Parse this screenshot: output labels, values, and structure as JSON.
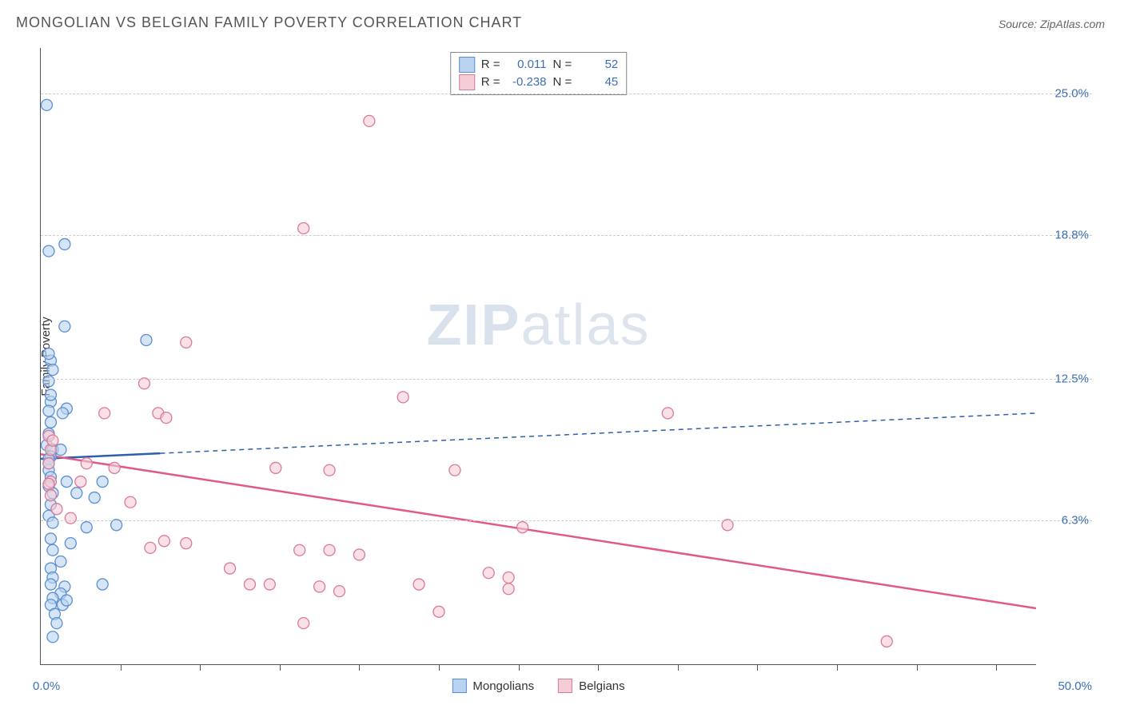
{
  "title": "MONGOLIAN VS BELGIAN FAMILY POVERTY CORRELATION CHART",
  "source_prefix": "Source: ",
  "source_name": "ZipAtlas.com",
  "y_axis_label": "Family Poverty",
  "watermark_bold": "ZIP",
  "watermark_rest": "atlas",
  "legend_top": {
    "series": [
      {
        "r_label": "R =",
        "r_value": "0.011",
        "n_label": "N =",
        "n_value": "52",
        "swatch_fill": "#b9d4f0",
        "swatch_border": "#5a8fd4"
      },
      {
        "r_label": "R =",
        "r_value": "-0.238",
        "n_label": "N =",
        "n_value": "45",
        "swatch_fill": "#f5cdd6",
        "swatch_border": "#d97a9a"
      }
    ]
  },
  "legend_bottom": {
    "items": [
      {
        "label": "Mongolians",
        "swatch_fill": "#b9d4f0",
        "swatch_border": "#5a8fd4"
      },
      {
        "label": "Belgians",
        "swatch_fill": "#f5cdd6",
        "swatch_border": "#d97a9a"
      }
    ]
  },
  "chart": {
    "type": "scatter",
    "xlim": [
      0,
      50
    ],
    "ylim": [
      0,
      27
    ],
    "x_axis_end_labels": [
      "0.0%",
      "50.0%"
    ],
    "y_ticks": [
      {
        "value": 6.3,
        "label": "6.3%"
      },
      {
        "value": 12.5,
        "label": "12.5%"
      },
      {
        "value": 18.8,
        "label": "18.8%"
      },
      {
        "value": 25.0,
        "label": "25.0%"
      }
    ],
    "x_tick_positions": [
      4,
      8,
      12,
      16,
      20,
      24,
      28,
      32,
      36,
      40,
      44,
      48
    ],
    "grid_color": "#cccccc",
    "background_color": "#ffffff",
    "marker_radius": 7,
    "marker_stroke_width": 1.3,
    "series": [
      {
        "name": "Mongolians",
        "color_fill": "#b9d4f0",
        "color_stroke": "#5a8fd4",
        "fill_opacity": 0.6,
        "trend": {
          "y_intercept": 9.0,
          "slope": 0.04,
          "solid_until_x": 6.0,
          "color": "#2f5fa8",
          "width": 2.5,
          "dash": "6 5"
        },
        "points": [
          [
            0.3,
            24.5
          ],
          [
            0.4,
            18.1
          ],
          [
            1.2,
            18.4
          ],
          [
            1.2,
            14.8
          ],
          [
            0.5,
            13.3
          ],
          [
            0.4,
            13.6
          ],
          [
            0.6,
            12.9
          ],
          [
            0.4,
            12.4
          ],
          [
            0.5,
            11.5
          ],
          [
            0.4,
            11.1
          ],
          [
            1.3,
            11.2
          ],
          [
            1.1,
            11.0
          ],
          [
            0.5,
            10.6
          ],
          [
            0.4,
            10.1
          ],
          [
            0.3,
            9.6
          ],
          [
            0.6,
            9.4
          ],
          [
            0.5,
            9.1
          ],
          [
            0.4,
            9.0
          ],
          [
            1.0,
            9.4
          ],
          [
            0.4,
            8.5
          ],
          [
            0.5,
            8.2
          ],
          [
            1.3,
            8.0
          ],
          [
            0.4,
            7.8
          ],
          [
            0.6,
            7.5
          ],
          [
            1.8,
            7.5
          ],
          [
            2.7,
            7.3
          ],
          [
            3.1,
            8.0
          ],
          [
            0.5,
            7.0
          ],
          [
            0.4,
            6.5
          ],
          [
            0.6,
            6.2
          ],
          [
            2.3,
            6.0
          ],
          [
            3.8,
            6.1
          ],
          [
            0.5,
            5.5
          ],
          [
            1.5,
            5.3
          ],
          [
            0.6,
            5.0
          ],
          [
            1.0,
            4.5
          ],
          [
            0.5,
            4.2
          ],
          [
            0.6,
            3.8
          ],
          [
            0.5,
            3.5
          ],
          [
            1.2,
            3.4
          ],
          [
            3.1,
            3.5
          ],
          [
            1.0,
            3.1
          ],
          [
            0.6,
            2.9
          ],
          [
            0.5,
            2.6
          ],
          [
            1.1,
            2.6
          ],
          [
            1.3,
            2.8
          ],
          [
            0.7,
            2.2
          ],
          [
            0.8,
            1.8
          ],
          [
            0.6,
            1.2
          ],
          [
            5.3,
            14.2
          ],
          [
            0.4,
            8.8
          ],
          [
            0.5,
            11.8
          ]
        ]
      },
      {
        "name": "Belgians",
        "color_fill": "#f5cdd6",
        "color_stroke": "#d97a9a",
        "fill_opacity": 0.6,
        "trend": {
          "y_intercept": 9.2,
          "slope": -0.135,
          "solid_until_x": 50,
          "color": "#e05a88",
          "width": 2.5,
          "dash": ""
        },
        "points": [
          [
            16.5,
            23.8
          ],
          [
            13.2,
            19.1
          ],
          [
            7.3,
            14.1
          ],
          [
            5.2,
            12.3
          ],
          [
            18.2,
            11.7
          ],
          [
            31.5,
            11.0
          ],
          [
            3.2,
            11.0
          ],
          [
            5.9,
            11.0
          ],
          [
            6.3,
            10.8
          ],
          [
            0.4,
            10.0
          ],
          [
            0.5,
            9.4
          ],
          [
            0.4,
            8.8
          ],
          [
            2.3,
            8.8
          ],
          [
            3.7,
            8.6
          ],
          [
            11.8,
            8.6
          ],
          [
            14.5,
            8.5
          ],
          [
            20.8,
            8.5
          ],
          [
            0.5,
            8.0
          ],
          [
            2.0,
            8.0
          ],
          [
            0.5,
            7.4
          ],
          [
            4.5,
            7.1
          ],
          [
            0.8,
            6.8
          ],
          [
            1.5,
            6.4
          ],
          [
            24.2,
            6.0
          ],
          [
            34.5,
            6.1
          ],
          [
            6.2,
            5.4
          ],
          [
            7.3,
            5.3
          ],
          [
            5.5,
            5.1
          ],
          [
            13.0,
            5.0
          ],
          [
            14.5,
            5.0
          ],
          [
            16.0,
            4.8
          ],
          [
            9.5,
            4.2
          ],
          [
            10.5,
            3.5
          ],
          [
            11.5,
            3.5
          ],
          [
            14.0,
            3.4
          ],
          [
            15.0,
            3.2
          ],
          [
            19.0,
            3.5
          ],
          [
            22.5,
            4.0
          ],
          [
            23.5,
            3.3
          ],
          [
            20.0,
            2.3
          ],
          [
            13.2,
            1.8
          ],
          [
            23.5,
            3.8
          ],
          [
            42.5,
            1.0
          ],
          [
            0.6,
            9.8
          ],
          [
            0.4,
            7.9
          ]
        ]
      }
    ]
  }
}
